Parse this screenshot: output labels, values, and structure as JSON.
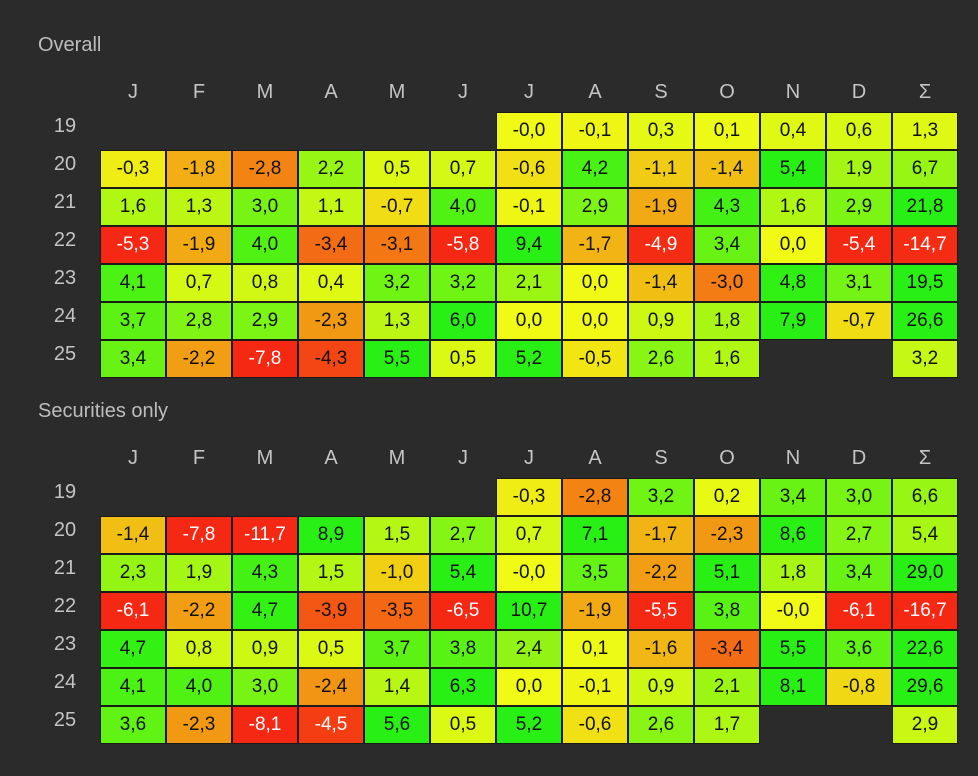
{
  "columns": [
    "J",
    "F",
    "M",
    "A",
    "M",
    "J",
    "J",
    "A",
    "S",
    "O",
    "N",
    "D",
    "Σ"
  ],
  "sections": [
    {
      "title": "Overall",
      "rows": [
        {
          "year": "19",
          "cells": [
            null,
            null,
            null,
            null,
            null,
            null,
            "-0,0",
            "-0,1",
            "0,3",
            "0,1",
            "0,4",
            "0,6",
            "1,3"
          ]
        },
        {
          "year": "20",
          "cells": [
            "-0,3",
            "-1,8",
            "-2,8",
            "2,2",
            "0,5",
            "0,7",
            "-0,6",
            "4,2",
            "-1,1",
            "-1,4",
            "5,4",
            "1,9",
            "6,7"
          ]
        },
        {
          "year": "21",
          "cells": [
            "1,6",
            "1,3",
            "3,0",
            "1,1",
            "-0,7",
            "4,0",
            "-0,1",
            "2,9",
            "-1,9",
            "4,3",
            "1,6",
            "2,9",
            "21,8"
          ]
        },
        {
          "year": "22",
          "cells": [
            "-5,3",
            "-1,9",
            "4,0",
            "-3,4",
            "-3,1",
            "-5,8",
            "9,4",
            "-1,7",
            "-4,9",
            "3,4",
            "0,0",
            "-5,4",
            "-14,7"
          ]
        },
        {
          "year": "23",
          "cells": [
            "4,1",
            "0,7",
            "0,8",
            "0,4",
            "3,2",
            "3,2",
            "2,1",
            "0,0",
            "-1,4",
            "-3,0",
            "4,8",
            "3,1",
            "19,5"
          ]
        },
        {
          "year": "24",
          "cells": [
            "3,7",
            "2,8",
            "2,9",
            "-2,3",
            "1,3",
            "6,0",
            "0,0",
            "0,0",
            "0,9",
            "1,8",
            "7,9",
            "-0,7",
            "26,6"
          ]
        },
        {
          "year": "25",
          "cells": [
            "3,4",
            "-2,2",
            "-7,8",
            "-4,3",
            "5,5",
            "0,5",
            "5,2",
            "-0,5",
            "2,6",
            "1,6",
            null,
            null,
            "3,2"
          ]
        }
      ]
    },
    {
      "title": "Securities only",
      "rows": [
        {
          "year": "19",
          "cells": [
            null,
            null,
            null,
            null,
            null,
            null,
            "-0,3",
            "-2,8",
            "3,2",
            "0,2",
            "3,4",
            "3,0",
            "6,6"
          ]
        },
        {
          "year": "20",
          "cells": [
            "-1,4",
            "-7,8",
            "-11,7",
            "8,9",
            "1,5",
            "2,7",
            "0,7",
            "7,1",
            "-1,7",
            "-2,3",
            "8,6",
            "2,7",
            "5,4"
          ]
        },
        {
          "year": "21",
          "cells": [
            "2,3",
            "1,9",
            "4,3",
            "1,5",
            "-1,0",
            "5,4",
            "-0,0",
            "3,5",
            "-2,2",
            "5,1",
            "1,8",
            "3,4",
            "29,0"
          ]
        },
        {
          "year": "22",
          "cells": [
            "-6,1",
            "-2,2",
            "4,7",
            "-3,9",
            "-3,5",
            "-6,5",
            "10,7",
            "-1,9",
            "-5,5",
            "3,8",
            "-0,0",
            "-6,1",
            "-16,7"
          ]
        },
        {
          "year": "23",
          "cells": [
            "4,7",
            "0,8",
            "0,9",
            "0,5",
            "3,7",
            "3,8",
            "2,4",
            "0,1",
            "-1,6",
            "-3,4",
            "5,5",
            "3,6",
            "22,6"
          ]
        },
        {
          "year": "24",
          "cells": [
            "4,1",
            "4,0",
            "3,0",
            "-2,4",
            "1,4",
            "6,3",
            "0,0",
            "-0,1",
            "0,9",
            "2,1",
            "8,1",
            "-0,8",
            "29,6"
          ]
        },
        {
          "year": "25",
          "cells": [
            "3,6",
            "-2,3",
            "-8,1",
            "-4,5",
            "5,6",
            "0,5",
            "5,2",
            "-0,6",
            "2,6",
            "1,7",
            null,
            null,
            "2,9"
          ]
        }
      ]
    }
  ]
}
